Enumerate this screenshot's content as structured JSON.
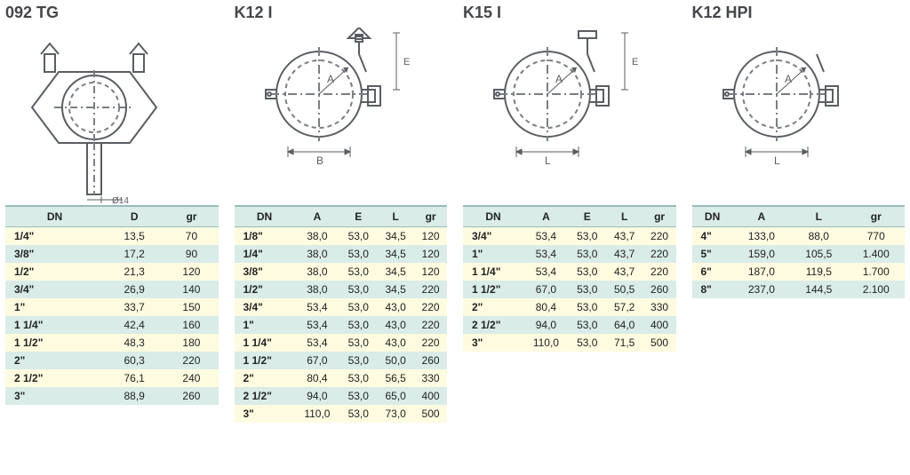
{
  "sections": [
    {
      "title": "092 TG",
      "diagram": "tg",
      "columns": [
        "DN",
        "D",
        "gr"
      ],
      "rows": [
        [
          "1/4\"",
          "13,5",
          "70"
        ],
        [
          "3/8\"",
          "17,2",
          "90"
        ],
        [
          "1/2\"",
          "21,3",
          "120"
        ],
        [
          "3/4\"",
          "26,9",
          "140"
        ],
        [
          "1\"",
          "33,7",
          "150"
        ],
        [
          "1 1/4\"",
          "42,4",
          "160"
        ],
        [
          "1 1/2\"",
          "48,3",
          "180"
        ],
        [
          "2\"",
          "60,3",
          "220"
        ],
        [
          "2 1/2\"",
          "76,1",
          "240"
        ],
        [
          "3\"",
          "88,9",
          "260"
        ]
      ]
    },
    {
      "title": "K12 I",
      "diagram": "clamp-be",
      "columns": [
        "DN",
        "A",
        "E",
        "L",
        "gr"
      ],
      "rows": [
        [
          "1/8\"",
          "38,0",
          "53,0",
          "34,5",
          "120"
        ],
        [
          "1/4\"",
          "38,0",
          "53,0",
          "34,5",
          "120"
        ],
        [
          "3/8\"",
          "38,0",
          "53,0",
          "34,5",
          "120"
        ],
        [
          "1/2\"",
          "38,0",
          "53,0",
          "34,5",
          "220"
        ],
        [
          "3/4\"",
          "53,4",
          "53,0",
          "43,0",
          "220"
        ],
        [
          "1\"",
          "53,4",
          "53,0",
          "43,0",
          "220"
        ],
        [
          "1 1/4\"",
          "53,4",
          "53,0",
          "43,0",
          "220"
        ],
        [
          "1 1/2\"",
          "67,0",
          "53,0",
          "50,0",
          "260"
        ],
        [
          "2\"",
          "80,4",
          "53,0",
          "56,5",
          "330"
        ],
        [
          "2 1/2\"",
          "94,0",
          "53,0",
          "65,0",
          "400"
        ],
        [
          "3\"",
          "110,0",
          "53,0",
          "73,0",
          "500"
        ]
      ]
    },
    {
      "title": "K15 I",
      "diagram": "clamp-l",
      "columns": [
        "DN",
        "A",
        "E",
        "L",
        "gr"
      ],
      "rows": [
        [
          "3/4\"",
          "53,4",
          "53,0",
          "43,7",
          "220"
        ],
        [
          "1\"",
          "53,4",
          "53,0",
          "43,7",
          "220"
        ],
        [
          "1 1/4\"",
          "53,4",
          "53,0",
          "43,7",
          "220"
        ],
        [
          "1 1/2\"",
          "67,0",
          "53,0",
          "50,5",
          "260"
        ],
        [
          "2\"",
          "80,4",
          "53,0",
          "57,2",
          "330"
        ],
        [
          "2 1/2\"",
          "94,0",
          "53,0",
          "64,0",
          "400"
        ],
        [
          "3\"",
          "110,0",
          "53,0",
          "71,5",
          "500"
        ]
      ]
    },
    {
      "title": "K12 HPI",
      "diagram": "clamp-hpi",
      "columns": [
        "DN",
        "A",
        "L",
        "gr"
      ],
      "rows": [
        [
          "4\"",
          "133,0",
          "88,0",
          "770"
        ],
        [
          "5\"",
          "159,0",
          "105,5",
          "1.400"
        ],
        [
          "6\"",
          "187,0",
          "119,5",
          "1.700"
        ],
        [
          "8\"",
          "237,0",
          "144,5",
          "2.100"
        ]
      ]
    }
  ],
  "style": {
    "header_bg": "#d9ece8",
    "row_even_bg": "#fffbe0",
    "row_odd_bg": "#d9ece8",
    "title_color": "#44464b",
    "stroke": "#5a5e63",
    "dash": "#7a7e84",
    "dim_label": "#5a5e63"
  }
}
